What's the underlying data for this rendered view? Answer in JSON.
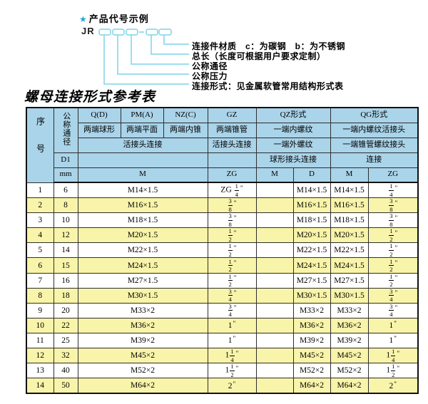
{
  "colors": {
    "header_bg": "#aad4e9",
    "row_alt_bg": "#f8f4a9",
    "row_bg": "#ffffff",
    "diagram_line": "#7ed3e8",
    "star": "#25a5db",
    "border": "#1a1a1a"
  },
  "diagram": {
    "star_icon": "★",
    "heading": "产品代号示例",
    "code_prefix": "JR",
    "labels": [
      "连接件材质　c：为碳钢　b：为不锈钢",
      "总长（长度可根据用户要求定制）",
      "公称通径",
      "公称压力",
      "连接形式：见金属软管常用结构形式表"
    ]
  },
  "table_title": "螺母连接形式参考表",
  "table": {
    "corner_label": "序号",
    "dn_label": "公称通径",
    "d1_label": "D1",
    "unit_label": "mm",
    "forms": [
      {
        "code": "Q(D)",
        "desc": "两端球形"
      },
      {
        "code": "PM(A)",
        "desc": "两端平面"
      },
      {
        "code": "NZ(C)",
        "desc": "两端内锥"
      }
    ],
    "huojietou": "活接头连接",
    "m_unit": "M",
    "gz": {
      "code": "GZ",
      "desc": "两端锥管",
      "row3": "活接头连接",
      "unit": "ZG"
    },
    "qz": {
      "code": "QZ形式",
      "desc1": "一端内螺纹",
      "desc2": "一端外螺纹",
      "desc3": "球形接头连接",
      "sub": [
        "M",
        "D"
      ]
    },
    "qg": {
      "code": "QG形式",
      "desc1": "一端内螺纹活接头",
      "desc2": "一端锥管螺纹接头",
      "desc3": "连接",
      "sub": [
        "M",
        "ZG"
      ]
    },
    "rows": [
      {
        "no": "1",
        "dn": "6",
        "m": "M14×1.5",
        "gz": "ZG 1/4\"",
        "qz_m": "",
        "qz_d": "M14×1.5",
        "qg_m": "M14×1.5",
        "qg_zg": "1/4\""
      },
      {
        "no": "2",
        "dn": "8",
        "m": "M16×1.5",
        "gz": "3/8\"",
        "qz_m": "",
        "qz_d": "M16×1.5",
        "qg_m": "M16×1.5",
        "qg_zg": "3/8\""
      },
      {
        "no": "3",
        "dn": "10",
        "m": "M18×1.5",
        "gz": "3/8\"",
        "qz_m": "",
        "qz_d": "M18×1.5",
        "qg_m": "M18×1.5",
        "qg_zg": "3/8\""
      },
      {
        "no": "4",
        "dn": "12",
        "m": "M20×1.5",
        "gz": "1/2\"",
        "qz_m": "",
        "qz_d": "M20×1.5",
        "qg_m": "M20×1.5",
        "qg_zg": "1/2\""
      },
      {
        "no": "5",
        "dn": "14",
        "m": "M22×1.5",
        "gz": "1/2\"",
        "qz_m": "",
        "qz_d": "M22×1.5",
        "qg_m": "M22×1.5",
        "qg_zg": "1/2\""
      },
      {
        "no": "6",
        "dn": "15",
        "m": "M24×1.5",
        "gz": "1/2\"",
        "qz_m": "",
        "qz_d": "M24×1.5",
        "qg_m": "M24×1.5",
        "qg_zg": "1/2\""
      },
      {
        "no": "7",
        "dn": "16",
        "m": "M27×1.5",
        "gz": "1/2\"",
        "qz_m": "",
        "qz_d": "M27×1.5",
        "qg_m": "M27×1.5",
        "qg_zg": "1/2\""
      },
      {
        "no": "8",
        "dn": "18",
        "m": "M30×1.5",
        "gz": "3/4\"",
        "qz_m": "",
        "qz_d": "M30×1.5",
        "qg_m": "M30×1.5",
        "qg_zg": "3/4\""
      },
      {
        "no": "9",
        "dn": "20",
        "m": "M33×2",
        "gz": "3/4\"",
        "qz_m": "",
        "qz_d": "M33×2",
        "qg_m": "M33×2",
        "qg_zg": "3/4\""
      },
      {
        "no": "10",
        "dn": "22",
        "m": "M36×2",
        "gz": "1\"",
        "qz_m": "",
        "qz_d": "M36×2",
        "qg_m": "M36×2",
        "qg_zg": "1\""
      },
      {
        "no": "11",
        "dn": "25",
        "m": "M39×2",
        "gz": "1\"",
        "qz_m": "",
        "qz_d": "M39×2",
        "qg_m": "M39×2",
        "qg_zg": "1\""
      },
      {
        "no": "12",
        "dn": "32",
        "m": "M45×2",
        "gz": "1 1/4\"",
        "qz_m": "",
        "qz_d": "M45×2",
        "qg_m": "M45×2",
        "qg_zg": "1 1/4\""
      },
      {
        "no": "13",
        "dn": "40",
        "m": "M52×2",
        "gz": "1 1/2\"",
        "qz_m": "",
        "qz_d": "M52×2",
        "qg_m": "M52×2",
        "qg_zg": "1 1/2\""
      },
      {
        "no": "14",
        "dn": "50",
        "m": "M64×2",
        "gz": "2\"",
        "qz_m": "",
        "qz_d": "M64×2",
        "qg_m": "M64×2",
        "qg_zg": "2\""
      }
    ]
  }
}
